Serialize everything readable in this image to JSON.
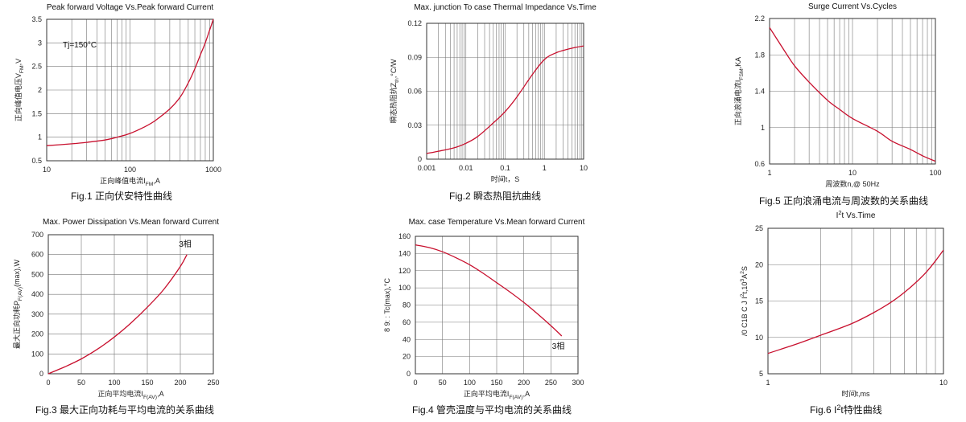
{
  "charts": [
    {
      "title": "Peak forward Voltage Vs.Peak forward Current",
      "caption": "Fig.1 正向伏安特性曲线",
      "xlabel": "正向峰值电流I<sub>FM</sub>,A",
      "ylabel": "正向峰值电压V<sub>FM</sub>,V",
      "annotation": "Tj=150°C",
      "x_ticks": [
        "10",
        "100",
        "1000"
      ],
      "y_ticks": [
        "0.5",
        "1",
        "1.5",
        "2",
        "2.5",
        "3",
        "3.5"
      ]
    },
    {
      "title": "Max. junction To case Thermal Impedance Vs.Time",
      "caption": "Fig.2 瞬态热阻抗曲线",
      "xlabel": "时间t，S",
      "ylabel": "瞬态热阻抗Z<sub>th</sub>,°C/W",
      "x_ticks": [
        "0.001",
        "0.01",
        "0.1",
        "1",
        "10"
      ],
      "y_ticks": [
        "0",
        "0.03",
        "0.06",
        "0.09",
        "0.12"
      ]
    },
    {
      "title": "Surge Current Vs.Cycles",
      "caption": "Fig.5 正向浪涌电流与周波数的关系曲线",
      "xlabel": "周波数n,@ 50Hz",
      "ylabel": "正向浪涌电流I<sub>FSM</sub>,KA",
      "x_ticks": [
        "1",
        "10",
        "100"
      ],
      "y_ticks": [
        "0.6",
        "1",
        "1.4",
        "1.8",
        "2.2"
      ]
    },
    {
      "title": "Max. Power Dissipation Vs.Mean forward Current",
      "caption": "Fig.3 最大正向功耗与平均电流的关系曲线",
      "xlabel": "正向平均电流I<sub>F(AV)</sub>,A",
      "ylabel": "最大正向功耗P<sub>F(AV)</sub>(max),W",
      "annotation": "3相",
      "x_ticks": [
        "0",
        "50",
        "100",
        "150",
        "200",
        "250"
      ],
      "y_ticks": [
        "0",
        "100",
        "200",
        "300",
        "400",
        "500",
        "600",
        "700"
      ]
    },
    {
      "title": "Max. case Temperature Vs.Mean forward Current",
      "caption": "Fig.4 管壳温度与平均电流的关系曲线",
      "xlabel": "正向平均电流I<sub>F(AV)</sub>,A",
      "ylabel": "Tc(max),°C",
      "ylabel_prefix": "8 9: :",
      "annotation": "3相",
      "x_ticks": [
        "0",
        "50",
        "100",
        "150",
        "200",
        "250",
        "300"
      ],
      "y_ticks": [
        "0",
        "20",
        "40",
        "60",
        "80",
        "100",
        "120",
        "140",
        "160"
      ]
    },
    {
      "title": "I<sup>2</sup>t  Vs.Time",
      "caption": "Fig.6 I<sup>2</sup>t特性曲线",
      "xlabel": "时间t,ms",
      "ylabel": "I<sup>2</sup>t,10<sup>3</sup>A<sup>2</sup>S",
      "ylabel_prefix": "/0 C1B    C J",
      "x_ticks": [
        "1",
        "10"
      ],
      "y_ticks": [
        "5",
        "10",
        "15",
        "20",
        "25"
      ]
    }
  ],
  "chart_data": [
    {
      "type": "line",
      "title": "Peak forward Voltage Vs.Peak forward Current",
      "xlabel": "正向峰值电流IFM,A",
      "ylabel": "正向峰值电压VFM,V",
      "xscale": "log",
      "xlim": [
        10,
        1000
      ],
      "ylim": [
        0.5,
        3.5
      ],
      "grid": true,
      "series": [
        {
          "x": [
            10,
            20,
            30,
            50,
            70,
            100,
            150,
            200,
            300,
            400,
            500,
            600,
            700,
            800,
            1000
          ],
          "y": [
            0.82,
            0.86,
            0.89,
            0.94,
            1.0,
            1.08,
            1.22,
            1.35,
            1.6,
            1.85,
            2.15,
            2.45,
            2.75,
            3.0,
            3.5
          ]
        }
      ]
    },
    {
      "type": "line",
      "title": "Max. junction To case Thermal Impedance Vs.Time",
      "xlabel": "时间t，S",
      "ylabel": "瞬态热阻抗Zth,°C/W",
      "xscale": "log",
      "xlim": [
        0.001,
        10
      ],
      "ylim": [
        0,
        0.12
      ],
      "grid": true,
      "series": [
        {
          "x": [
            0.001,
            0.002,
            0.005,
            0.01,
            0.02,
            0.05,
            0.1,
            0.2,
            0.5,
            1,
            2,
            5,
            10
          ],
          "y": [
            0.005,
            0.007,
            0.01,
            0.014,
            0.02,
            0.032,
            0.042,
            0.055,
            0.075,
            0.088,
            0.094,
            0.098,
            0.1
          ]
        }
      ]
    },
    {
      "type": "line",
      "title": "Surge Current Vs.Cycles",
      "xlabel": "周波数n,@ 50Hz",
      "ylabel": "正向浪涌电流IFSM,KA",
      "xscale": "log",
      "xlim": [
        1,
        100
      ],
      "ylim": [
        0.6,
        2.2
      ],
      "grid": true,
      "series": [
        {
          "x": [
            1,
            1.5,
            2,
            3,
            5,
            7,
            10,
            20,
            30,
            50,
            70,
            100
          ],
          "y": [
            2.1,
            1.85,
            1.68,
            1.5,
            1.3,
            1.2,
            1.1,
            0.96,
            0.85,
            0.76,
            0.69,
            0.63
          ]
        }
      ]
    },
    {
      "type": "line",
      "title": "Max. Power Dissipation Vs.Mean forward Current",
      "xlabel": "正向平均电流IF(AV),A",
      "ylabel": "最大正向功耗PF(AV)(max),W",
      "xlim": [
        0,
        250
      ],
      "ylim": [
        0,
        700
      ],
      "grid": true,
      "series": [
        {
          "name": "3相",
          "x": [
            0,
            25,
            50,
            75,
            100,
            125,
            150,
            175,
            200,
            210
          ],
          "y": [
            0,
            35,
            75,
            125,
            185,
            255,
            335,
            425,
            540,
            600
          ]
        }
      ]
    },
    {
      "type": "line",
      "title": "Max. case Temperature Vs.Mean forward Current",
      "xlabel": "正向平均电流IF(AV),A",
      "ylabel": "Tc(max),°C",
      "xlim": [
        0,
        300
      ],
      "ylim": [
        0,
        160
      ],
      "grid": true,
      "series": [
        {
          "name": "3相",
          "x": [
            0,
            25,
            50,
            75,
            100,
            125,
            150,
            175,
            200,
            225,
            250,
            270
          ],
          "y": [
            150,
            147,
            142,
            135,
            127,
            117,
            106,
            95,
            83,
            70,
            56,
            44
          ]
        }
      ]
    },
    {
      "type": "line",
      "title": "I2t Vs.Time",
      "xlabel": "时间t,ms",
      "ylabel": "I2t,103A2S",
      "xscale": "log",
      "xlim": [
        1,
        10
      ],
      "ylim": [
        5,
        25
      ],
      "grid": true,
      "series": [
        {
          "x": [
            1,
            1.5,
            2,
            3,
            4,
            5,
            6,
            7,
            8,
            9,
            10
          ],
          "y": [
            7.8,
            9.2,
            10.3,
            11.9,
            13.4,
            14.8,
            16.2,
            17.6,
            19.0,
            20.5,
            22.0
          ]
        }
      ]
    }
  ]
}
